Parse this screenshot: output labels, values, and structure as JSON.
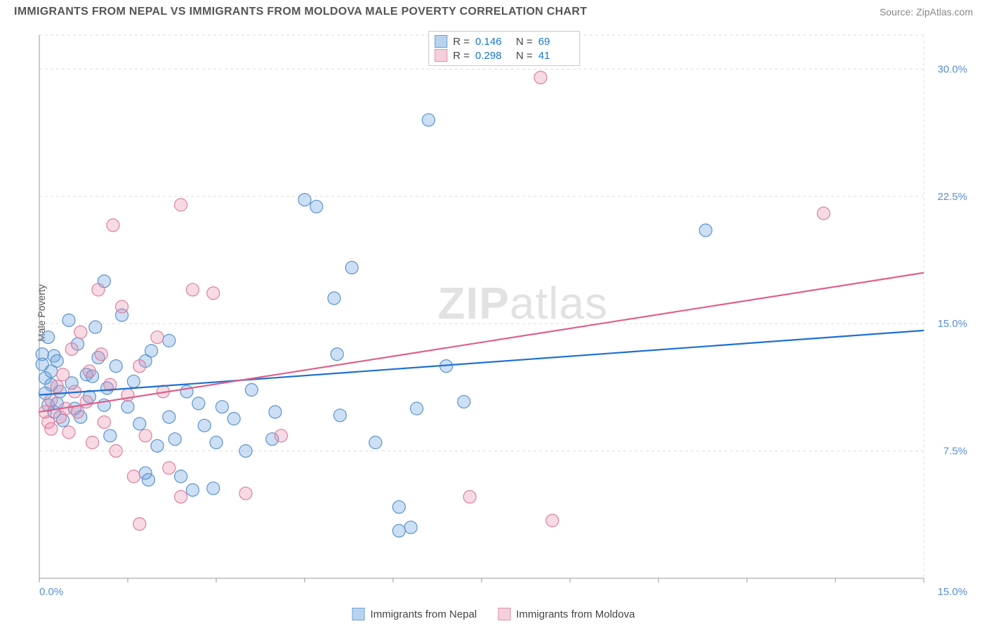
{
  "header": {
    "title": "IMMIGRANTS FROM NEPAL VS IMMIGRANTS FROM MOLDOVA MALE POVERTY CORRELATION CHART",
    "source_prefix": "Source: ",
    "source_link": "ZipAtlas.com"
  },
  "chart": {
    "type": "scatter",
    "ylabel": "Male Poverty",
    "xlim": [
      0,
      15
    ],
    "ylim": [
      0,
      32
    ],
    "y_ticks": [
      7.5,
      15.0,
      22.5,
      30.0
    ],
    "y_tick_labels": [
      "7.5%",
      "15.0%",
      "22.5%",
      "30.0%"
    ],
    "x_tick_left": "0.0%",
    "x_tick_right": "15.0%",
    "x_minor_ticks": [
      0,
      1.5,
      3.0,
      4.5,
      6.0,
      7.5,
      9.0,
      10.5,
      12.0,
      13.5,
      15.0
    ],
    "background_color": "#ffffff",
    "grid_color": "#dddddd",
    "grid_dash": "4,4",
    "axis_color": "#999999",
    "tick_label_color": "#5b8fd6",
    "label_fontsize": 14,
    "tick_fontsize": 15,
    "marker_radius": 9,
    "marker_stroke_width": 1.2,
    "line_width": 2.2,
    "watermark": {
      "zip": "ZIP",
      "atlas": "atlas"
    },
    "series": [
      {
        "name": "Immigrants from Nepal",
        "fill": "rgba(108,163,224,0.35)",
        "stroke": "#5b93cf",
        "swatch_fill": "#b9d3ef",
        "swatch_stroke": "#6a9fd6",
        "line_color": "#1e6fd4",
        "R": "0.146",
        "N": "69",
        "trend": {
          "x1": 0,
          "y1": 10.8,
          "x2": 15,
          "y2": 14.6
        },
        "points": [
          [
            0.05,
            13.2
          ],
          [
            0.05,
            12.6
          ],
          [
            0.1,
            11.8
          ],
          [
            0.1,
            10.9
          ],
          [
            0.15,
            10.2
          ],
          [
            0.15,
            14.2
          ],
          [
            0.2,
            12.2
          ],
          [
            0.2,
            11.4
          ],
          [
            0.25,
            13.1
          ],
          [
            0.25,
            9.8
          ],
          [
            0.3,
            12.8
          ],
          [
            0.3,
            10.3
          ],
          [
            0.35,
            11.0
          ],
          [
            0.4,
            9.3
          ],
          [
            0.5,
            15.2
          ],
          [
            0.55,
            11.5
          ],
          [
            0.6,
            10.0
          ],
          [
            0.65,
            13.8
          ],
          [
            0.7,
            9.5
          ],
          [
            0.8,
            12.0
          ],
          [
            0.85,
            10.7
          ],
          [
            0.9,
            11.9
          ],
          [
            0.95,
            14.8
          ],
          [
            1.0,
            13.0
          ],
          [
            1.1,
            10.2
          ],
          [
            1.1,
            17.5
          ],
          [
            1.15,
            11.2
          ],
          [
            1.2,
            8.4
          ],
          [
            1.3,
            12.5
          ],
          [
            1.4,
            15.5
          ],
          [
            1.5,
            10.1
          ],
          [
            1.6,
            11.6
          ],
          [
            1.7,
            9.1
          ],
          [
            1.8,
            12.8
          ],
          [
            1.8,
            6.2
          ],
          [
            1.85,
            5.8
          ],
          [
            1.9,
            13.4
          ],
          [
            2.0,
            7.8
          ],
          [
            2.2,
            14.0
          ],
          [
            2.2,
            9.5
          ],
          [
            2.3,
            8.2
          ],
          [
            2.4,
            6.0
          ],
          [
            2.5,
            11.0
          ],
          [
            2.6,
            5.2
          ],
          [
            2.7,
            10.3
          ],
          [
            2.8,
            9.0
          ],
          [
            2.95,
            5.3
          ],
          [
            3.0,
            8.0
          ],
          [
            3.1,
            10.1
          ],
          [
            3.3,
            9.4
          ],
          [
            3.5,
            7.5
          ],
          [
            3.6,
            11.1
          ],
          [
            3.95,
            8.2
          ],
          [
            4.0,
            9.8
          ],
          [
            4.5,
            22.3
          ],
          [
            4.7,
            21.9
          ],
          [
            5.0,
            16.5
          ],
          [
            5.05,
            13.2
          ],
          [
            5.1,
            9.6
          ],
          [
            5.3,
            18.3
          ],
          [
            5.7,
            8.0
          ],
          [
            6.1,
            2.8
          ],
          [
            6.3,
            3.0
          ],
          [
            6.4,
            10.0
          ],
          [
            6.6,
            27.0
          ],
          [
            6.9,
            12.5
          ],
          [
            7.2,
            10.4
          ],
          [
            11.3,
            20.5
          ],
          [
            6.1,
            4.2
          ]
        ]
      },
      {
        "name": "Immigrants from Moldova",
        "fill": "rgba(233,140,170,0.32)",
        "stroke": "#dd7fa1",
        "swatch_fill": "#f6cfdc",
        "swatch_stroke": "#e28fab",
        "line_color": "#e05f8a",
        "R": "0.298",
        "N": "41",
        "trend": {
          "x1": 0,
          "y1": 9.8,
          "x2": 15,
          "y2": 18.0
        },
        "points": [
          [
            0.1,
            9.8
          ],
          [
            0.15,
            9.2
          ],
          [
            0.2,
            10.5
          ],
          [
            0.2,
            8.8
          ],
          [
            0.3,
            11.3
          ],
          [
            0.35,
            9.5
          ],
          [
            0.4,
            12.0
          ],
          [
            0.45,
            10.0
          ],
          [
            0.5,
            8.6
          ],
          [
            0.55,
            13.5
          ],
          [
            0.6,
            11.0
          ],
          [
            0.65,
            9.8
          ],
          [
            0.7,
            14.5
          ],
          [
            0.8,
            10.4
          ],
          [
            0.85,
            12.2
          ],
          [
            0.9,
            8.0
          ],
          [
            1.0,
            17.0
          ],
          [
            1.05,
            13.2
          ],
          [
            1.1,
            9.2
          ],
          [
            1.2,
            11.4
          ],
          [
            1.25,
            20.8
          ],
          [
            1.3,
            7.5
          ],
          [
            1.4,
            16.0
          ],
          [
            1.5,
            10.8
          ],
          [
            1.6,
            6.0
          ],
          [
            1.7,
            12.5
          ],
          [
            1.7,
            3.2
          ],
          [
            1.8,
            8.4
          ],
          [
            2.0,
            14.2
          ],
          [
            2.1,
            11.0
          ],
          [
            2.2,
            6.5
          ],
          [
            2.4,
            4.8
          ],
          [
            2.4,
            22.0
          ],
          [
            2.6,
            17.0
          ],
          [
            2.95,
            16.8
          ],
          [
            3.5,
            5.0
          ],
          [
            4.1,
            8.4
          ],
          [
            7.3,
            4.8
          ],
          [
            8.5,
            29.5
          ],
          [
            8.7,
            3.4
          ],
          [
            13.3,
            21.5
          ]
        ]
      }
    ],
    "stats_legend": {
      "R_label": "R  =",
      "N_label": "N  ="
    },
    "bottom_legend_labels": [
      "Immigrants from Nepal",
      "Immigrants from Moldova"
    ]
  }
}
